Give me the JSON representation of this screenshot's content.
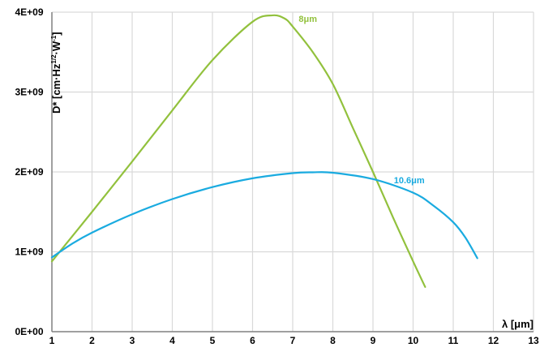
{
  "chart_data": {
    "type": "line",
    "title": "",
    "xlabel": "λ [μm]",
    "ylabel": {
      "base": "D* [cm·Hz",
      "sup1": "1/2",
      "mid": "·W",
      "sup2": "-1",
      "end": "]"
    },
    "xlim": [
      1,
      13
    ],
    "ylim": [
      0,
      4000000000
    ],
    "xticks": [
      1,
      2,
      3,
      4,
      5,
      6,
      7,
      8,
      9,
      10,
      11,
      12,
      13
    ],
    "yticks": [
      {
        "value": 0,
        "label": "0E+00"
      },
      {
        "value": 1000000000,
        "label": "1E+09"
      },
      {
        "value": 2000000000,
        "label": "2E+09"
      },
      {
        "value": 3000000000,
        "label": "3E+09"
      },
      {
        "value": 4000000000,
        "label": "4E+09"
      }
    ],
    "grid": true,
    "series": [
      {
        "name": "8μm",
        "color": "#92c13d",
        "points": [
          {
            "x": 1.0,
            "y": 880000000
          },
          {
            "x": 2.0,
            "y": 1500000000
          },
          {
            "x": 3.0,
            "y": 2130000000
          },
          {
            "x": 4.0,
            "y": 2770000000
          },
          {
            "x": 5.0,
            "y": 3400000000
          },
          {
            "x": 6.0,
            "y": 3880000000
          },
          {
            "x": 6.5,
            "y": 3960000000
          },
          {
            "x": 6.8,
            "y": 3920000000
          },
          {
            "x": 7.0,
            "y": 3820000000
          },
          {
            "x": 7.5,
            "y": 3500000000
          },
          {
            "x": 8.0,
            "y": 3100000000
          },
          {
            "x": 8.5,
            "y": 2550000000
          },
          {
            "x": 9.0,
            "y": 2000000000
          },
          {
            "x": 9.5,
            "y": 1430000000
          },
          {
            "x": 10.0,
            "y": 880000000
          },
          {
            "x": 10.3,
            "y": 560000000
          }
        ]
      },
      {
        "name": "10.6μm",
        "color": "#1aabe0",
        "points": [
          {
            "x": 1.0,
            "y": 930000000
          },
          {
            "x": 1.5,
            "y": 1100000000
          },
          {
            "x": 2.0,
            "y": 1240000000
          },
          {
            "x": 3.0,
            "y": 1470000000
          },
          {
            "x": 4.0,
            "y": 1660000000
          },
          {
            "x": 5.0,
            "y": 1810000000
          },
          {
            "x": 6.0,
            "y": 1920000000
          },
          {
            "x": 7.0,
            "y": 1985000000
          },
          {
            "x": 7.5,
            "y": 1995000000
          },
          {
            "x": 8.0,
            "y": 1990000000
          },
          {
            "x": 9.0,
            "y": 1910000000
          },
          {
            "x": 10.0,
            "y": 1740000000
          },
          {
            "x": 10.5,
            "y": 1580000000
          },
          {
            "x": 11.0,
            "y": 1370000000
          },
          {
            "x": 11.3,
            "y": 1180000000
          },
          {
            "x": 11.6,
            "y": 920000000
          }
        ]
      }
    ]
  }
}
